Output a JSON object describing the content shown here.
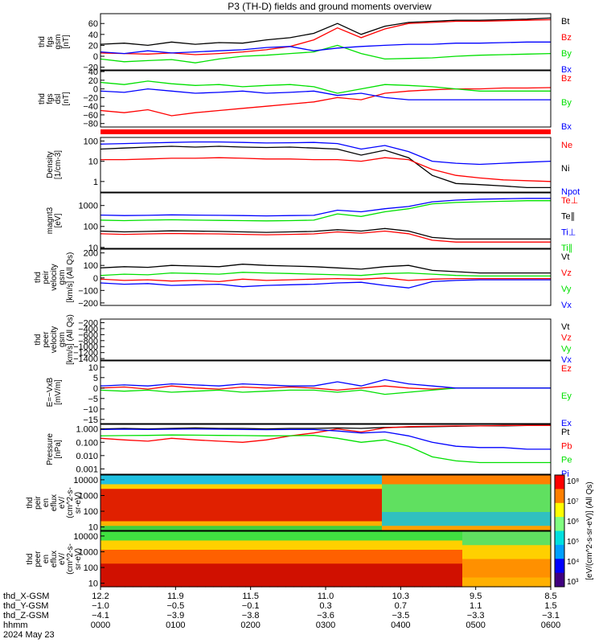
{
  "title": "P3 (TH-D) fields and ground moments overview",
  "colors": {
    "black": "#000000",
    "red": "#ff0000",
    "green": "#00e000",
    "blue": "#0000ff"
  },
  "chart_data": [
    {
      "id": "fgs",
      "type": "line",
      "ylabel": [
        "thd",
        "fgs",
        "gsm",
        "[nT]"
      ],
      "ylim": [
        -25,
        78
      ],
      "yticks": [
        "60",
        "40",
        "20",
        "0",
        "−20"
      ],
      "ytick_values": [
        60,
        40,
        20,
        0,
        -20
      ],
      "legend": [
        {
          "name": "Bt",
          "color": "black"
        },
        {
          "name": "Bz",
          "color": "red"
        },
        {
          "name": "By",
          "color": "green"
        },
        {
          "name": "Bx",
          "color": "blue"
        }
      ],
      "series": [
        {
          "name": "Bt",
          "color": "black",
          "values": [
            22,
            24,
            20,
            26,
            22,
            25,
            24,
            30,
            34,
            42,
            60,
            40,
            55,
            62,
            64,
            66,
            66,
            67,
            68,
            70
          ]
        },
        {
          "name": "Bz",
          "color": "red",
          "values": [
            6,
            5,
            4,
            6,
            3,
            5,
            8,
            12,
            18,
            30,
            52,
            34,
            50,
            60,
            62,
            64,
            64,
            65,
            66,
            67
          ]
        },
        {
          "name": "By",
          "color": "green",
          "values": [
            -5,
            -10,
            -8,
            -6,
            -12,
            -5,
            0,
            2,
            5,
            8,
            20,
            5,
            -5,
            -4,
            -3,
            0,
            2,
            3,
            4,
            5
          ]
        },
        {
          "name": "Bx",
          "color": "blue",
          "values": [
            8,
            5,
            10,
            6,
            8,
            10,
            12,
            16,
            18,
            10,
            15,
            18,
            20,
            22,
            22,
            24,
            24,
            25,
            26,
            26
          ]
        }
      ]
    },
    {
      "id": "fgs_dsl",
      "type": "line",
      "ylabel": [
        "thd",
        "fgs",
        "dsl",
        "[nT]"
      ],
      "ylim": [
        -88,
        42
      ],
      "yticks": [
        "40",
        "20",
        "0",
        "−20",
        "−40",
        "−60",
        "−80"
      ],
      "ytick_values": [
        40,
        20,
        0,
        -20,
        -40,
        -60,
        -80
      ],
      "legend": [
        {
          "name": "Bz",
          "color": "red"
        },
        {
          "name": "By",
          "color": "green"
        },
        {
          "name": "Bx",
          "color": "blue"
        }
      ],
      "series": [
        {
          "name": "Bz",
          "color": "red",
          "values": [
            -50,
            -55,
            -48,
            -62,
            -55,
            -50,
            -45,
            -40,
            -35,
            -30,
            -20,
            -25,
            -10,
            -5,
            -2,
            0,
            0,
            2,
            2,
            3
          ]
        },
        {
          "name": "By",
          "color": "green",
          "values": [
            15,
            10,
            18,
            12,
            8,
            10,
            5,
            8,
            10,
            5,
            -10,
            0,
            10,
            8,
            5,
            0,
            -5,
            -5,
            -5,
            -5
          ]
        },
        {
          "name": "Bx",
          "color": "blue",
          "values": [
            -5,
            -8,
            0,
            -5,
            -10,
            -8,
            -5,
            -10,
            -8,
            -5,
            -15,
            -10,
            -20,
            -25,
            -25,
            -25,
            -25,
            -25,
            -25,
            -25
          ]
        }
      ]
    },
    {
      "id": "density",
      "type": "line",
      "log": true,
      "ylabel": [
        "Density",
        "[1/cm-3]"
      ],
      "ylim": [
        0.3,
        150
      ],
      "yticks": [
        "100",
        "10",
        "1"
      ],
      "ytick_values": [
        100,
        10,
        1
      ],
      "legend": [
        {
          "name": "Ne",
          "color": "red"
        },
        {
          "name": "Ni",
          "color": "black"
        },
        {
          "name": "Npot",
          "color": "blue"
        }
      ],
      "series": [
        {
          "name": "Npot",
          "color": "blue",
          "values": [
            70,
            75,
            80,
            85,
            90,
            90,
            85,
            80,
            82,
            85,
            75,
            40,
            60,
            30,
            10,
            8,
            7,
            8,
            9,
            10
          ]
        },
        {
          "name": "Ni",
          "color": "black",
          "values": [
            40,
            45,
            50,
            55,
            50,
            55,
            50,
            48,
            50,
            45,
            40,
            20,
            35,
            15,
            2,
            0.8,
            0.7,
            0.6,
            0.5,
            0.5
          ]
        },
        {
          "name": "Ne",
          "color": "red",
          "values": [
            12,
            12,
            13,
            14,
            14,
            15,
            14,
            13,
            13,
            12,
            12,
            10,
            15,
            12,
            4,
            2,
            1.5,
            1.2,
            1.1,
            1
          ]
        }
      ]
    },
    {
      "id": "temp",
      "type": "line",
      "log": true,
      "ylabel": [
        "magnt3",
        "[eV]"
      ],
      "ylim": [
        9,
        4000
      ],
      "yticks": [
        "1000",
        "100",
        "10"
      ],
      "ytick_values": [
        1000,
        100,
        10
      ],
      "legend": [
        {
          "name": "Te⊥",
          "color": "red"
        },
        {
          "name": "Te∥",
          "color": "black"
        },
        {
          "name": "Ti⊥",
          "color": "blue"
        },
        {
          "name": "Ti∥",
          "color": "green"
        }
      ],
      "series": [
        {
          "name": "Ti⊥",
          "color": "blue",
          "values": [
            350,
            330,
            340,
            360,
            350,
            340,
            330,
            320,
            330,
            340,
            600,
            500,
            700,
            900,
            1500,
            1800,
            2000,
            2100,
            2200,
            2200
          ]
        },
        {
          "name": "Ti∥",
          "color": "green",
          "values": [
            200,
            190,
            200,
            210,
            200,
            195,
            190,
            185,
            190,
            200,
            400,
            300,
            500,
            700,
            1200,
            1400,
            1500,
            1600,
            1700,
            1700
          ]
        },
        {
          "name": "Te∥",
          "color": "black",
          "values": [
            60,
            55,
            58,
            62,
            60,
            58,
            55,
            52,
            55,
            58,
            70,
            60,
            80,
            60,
            30,
            25,
            25,
            25,
            25,
            25
          ]
        },
        {
          "name": "Te⊥",
          "color": "red",
          "values": [
            45,
            42,
            44,
            46,
            45,
            44,
            42,
            40,
            42,
            44,
            55,
            48,
            60,
            45,
            22,
            18,
            18,
            18,
            18,
            18
          ]
        }
      ]
    },
    {
      "id": "ion_vel",
      "type": "line",
      "ylabel": [
        "thd",
        "peir",
        "velocity",
        "gsm",
        "[km/s] (All Qs)"
      ],
      "ylim": [
        -220,
        230
      ],
      "yticks": [
        "200",
        "100",
        "0",
        "−100",
        "−200"
      ],
      "ytick_values": [
        200,
        100,
        0,
        -100,
        -200
      ],
      "legend": [
        {
          "name": "Vt",
          "color": "black"
        },
        {
          "name": "Vz",
          "color": "red"
        },
        {
          "name": "Vy",
          "color": "green"
        },
        {
          "name": "Vx",
          "color": "blue"
        }
      ],
      "series": [
        {
          "name": "Vt",
          "color": "black",
          "values": [
            80,
            90,
            85,
            100,
            95,
            90,
            110,
            100,
            95,
            90,
            80,
            70,
            90,
            100,
            60,
            50,
            40,
            40,
            40,
            40
          ]
        },
        {
          "name": "Vz",
          "color": "red",
          "values": [
            -10,
            -20,
            -15,
            -25,
            -20,
            -30,
            -10,
            -20,
            -15,
            -10,
            -5,
            -10,
            0,
            -20,
            -10,
            -5,
            -5,
            -5,
            -5,
            -5
          ]
        },
        {
          "name": "Vy",
          "color": "green",
          "values": [
            20,
            30,
            25,
            40,
            35,
            30,
            45,
            40,
            35,
            30,
            25,
            20,
            35,
            40,
            30,
            20,
            15,
            15,
            15,
            15
          ]
        },
        {
          "name": "Vx",
          "color": "blue",
          "values": [
            -40,
            -50,
            -45,
            -60,
            -55,
            -50,
            -70,
            -60,
            -55,
            -50,
            -40,
            -35,
            -60,
            -80,
            -30,
            -20,
            -15,
            -15,
            -15,
            -15
          ]
        }
      ]
    },
    {
      "id": "elec_vel",
      "type": "line",
      "ylabel": [
        "thd",
        "peer",
        "velocity",
        "gsm",
        "[km/s] (All Qs)"
      ],
      "ylim": [
        -1450,
        -80
      ],
      "yticks": [
        "−200",
        "−400",
        "−600",
        "−800",
        "−1000",
        "−1200",
        "−1400"
      ],
      "ytick_values": [
        -200,
        -400,
        -600,
        -800,
        -1000,
        -1200,
        -1400
      ],
      "legend": [
        {
          "name": "Vt",
          "color": "black"
        },
        {
          "name": "Vz",
          "color": "red"
        },
        {
          "name": "Vy",
          "color": "green"
        },
        {
          "name": "Vx",
          "color": "blue"
        }
      ],
      "series": []
    },
    {
      "id": "efield",
      "type": "line",
      "ylabel": [
        "E=−VxB",
        "[mV/m]"
      ],
      "ylim": [
        -17,
        13
      ],
      "yticks": [
        "10",
        "5",
        "0",
        "−5",
        "−10",
        "−15"
      ],
      "ytick_values": [
        10,
        5,
        0,
        -5,
        -10,
        -15
      ],
      "legend": [
        {
          "name": "Ez",
          "color": "red"
        },
        {
          "name": "Ey",
          "color": "green"
        },
        {
          "name": "Ex",
          "color": "blue"
        }
      ],
      "series": [
        {
          "name": "Ez",
          "color": "red",
          "values": [
            0,
            0.5,
            -0.5,
            1,
            0,
            -0.5,
            0.5,
            0,
            0.5,
            0,
            -1,
            0,
            1,
            0,
            -0.5,
            0,
            0,
            0,
            0,
            0
          ]
        },
        {
          "name": "Ey",
          "color": "green",
          "values": [
            -1,
            -1.5,
            -1,
            -2,
            -1.5,
            -1,
            -2,
            -1.5,
            -1,
            -1,
            -2,
            -1,
            -3,
            -2,
            -1,
            0,
            0,
            0,
            0,
            0
          ]
        },
        {
          "name": "Ex",
          "color": "blue",
          "values": [
            1,
            1.5,
            1,
            2,
            1.5,
            1,
            2,
            1.5,
            1,
            1,
            3,
            1,
            4,
            2,
            1,
            0,
            0,
            0,
            0,
            0
          ]
        }
      ]
    },
    {
      "id": "pressure",
      "type": "line",
      "log": true,
      "ylabel": [
        "Pressure",
        "[nPa]"
      ],
      "ylim": [
        0.0004,
        2.2
      ],
      "yticks": [
        "1.000",
        "0.100",
        "0.010",
        "0.001"
      ],
      "ytick_values": [
        1,
        0.1,
        0.01,
        0.001
      ],
      "legend": [
        {
          "name": "Pt",
          "color": "black"
        },
        {
          "name": "Pb",
          "color": "red"
        },
        {
          "name": "Pe",
          "color": "green"
        },
        {
          "name": "Pi",
          "color": "blue"
        }
      ],
      "series": [
        {
          "name": "Pt",
          "color": "black",
          "values": [
            1,
            1.1,
            1,
            1.1,
            1.2,
            1.1,
            1.1,
            1,
            1.1,
            1.1,
            1.2,
            1.1,
            1.3,
            1.4,
            1.5,
            1.6,
            1.7,
            1.7,
            1.8,
            1.8
          ]
        },
        {
          "name": "Pb",
          "color": "red",
          "values": [
            0.2,
            0.15,
            0.12,
            0.2,
            0.15,
            0.12,
            0.1,
            0.15,
            0.3,
            0.5,
            1,
            0.6,
            1.2,
            1.5,
            1.6,
            1.7,
            1.7,
            1.8,
            1.8,
            1.8
          ]
        },
        {
          "name": "Pe",
          "color": "green",
          "values": [
            0.3,
            0.32,
            0.33,
            0.35,
            0.34,
            0.33,
            0.32,
            0.3,
            0.31,
            0.33,
            0.2,
            0.1,
            0.15,
            0.05,
            0.008,
            0.004,
            0.003,
            0.003,
            0.003,
            0.003
          ]
        },
        {
          "name": "Pi",
          "color": "blue",
          "values": [
            0.9,
            0.95,
            0.9,
            0.95,
            1,
            0.95,
            0.9,
            0.88,
            0.9,
            0.9,
            0.7,
            0.5,
            0.6,
            0.3,
            0.1,
            0.05,
            0.04,
            0.04,
            0.03,
            0.03
          ]
        }
      ]
    },
    {
      "id": "ion_spec",
      "type": "heatmap",
      "ylabel": [
        "thd",
        "peir",
        "en",
        "eflux",
        "eV/",
        "(cm^2-s-",
        "sr-eV)"
      ],
      "log": true,
      "ylim": [
        6,
        20000
      ],
      "yticks": [
        "10000",
        "1000",
        "100",
        "10"
      ],
      "ytick_values": [
        10000,
        1000,
        100,
        10
      ]
    },
    {
      "id": "elec_spec",
      "type": "heatmap",
      "ylabel": [
        "thd",
        "peer",
        "en",
        "eflux",
        "eV/",
        "(cm^2-s-",
        "sr-eV)"
      ],
      "log": true,
      "ylim": [
        6,
        20000
      ],
      "yticks": [
        "10000",
        "1000",
        "100",
        "10"
      ],
      "ytick_values": [
        10000,
        1000,
        100,
        10
      ]
    }
  ],
  "colorbar": {
    "label": "[eV/(cm^2-s-sr-eV)] (All Qs)",
    "ticks": [
      "10⁸",
      "10⁷",
      "10⁶",
      "10⁵",
      "10⁴",
      "10³"
    ]
  },
  "xaxis": {
    "row_labels": [
      "thd_X-GSM",
      "thd_Y-GSM",
      "thd_Z-GSM",
      "hhmm",
      "2024 May 23"
    ],
    "ticks": [
      {
        "x": "12.2",
        "y": "−1.0",
        "z": "−4.1",
        "t": "0000"
      },
      {
        "x": "11.9",
        "y": "−0.5",
        "z": "−3.9",
        "t": "0100"
      },
      {
        "x": "11.5",
        "y": "−0.1",
        "z": "−3.8",
        "t": "0200"
      },
      {
        "x": "11.0",
        "y": "0.3",
        "z": "−3.6",
        "t": "0300"
      },
      {
        "x": "10.3",
        "y": "0.7",
        "z": "−3.5",
        "t": "0400"
      },
      {
        "x": "9.5",
        "y": "1.1",
        "z": "−3.3",
        "t": "0500"
      },
      {
        "x": "8.5",
        "y": "1.5",
        "z": "−3.1",
        "t": "0600"
      }
    ]
  }
}
